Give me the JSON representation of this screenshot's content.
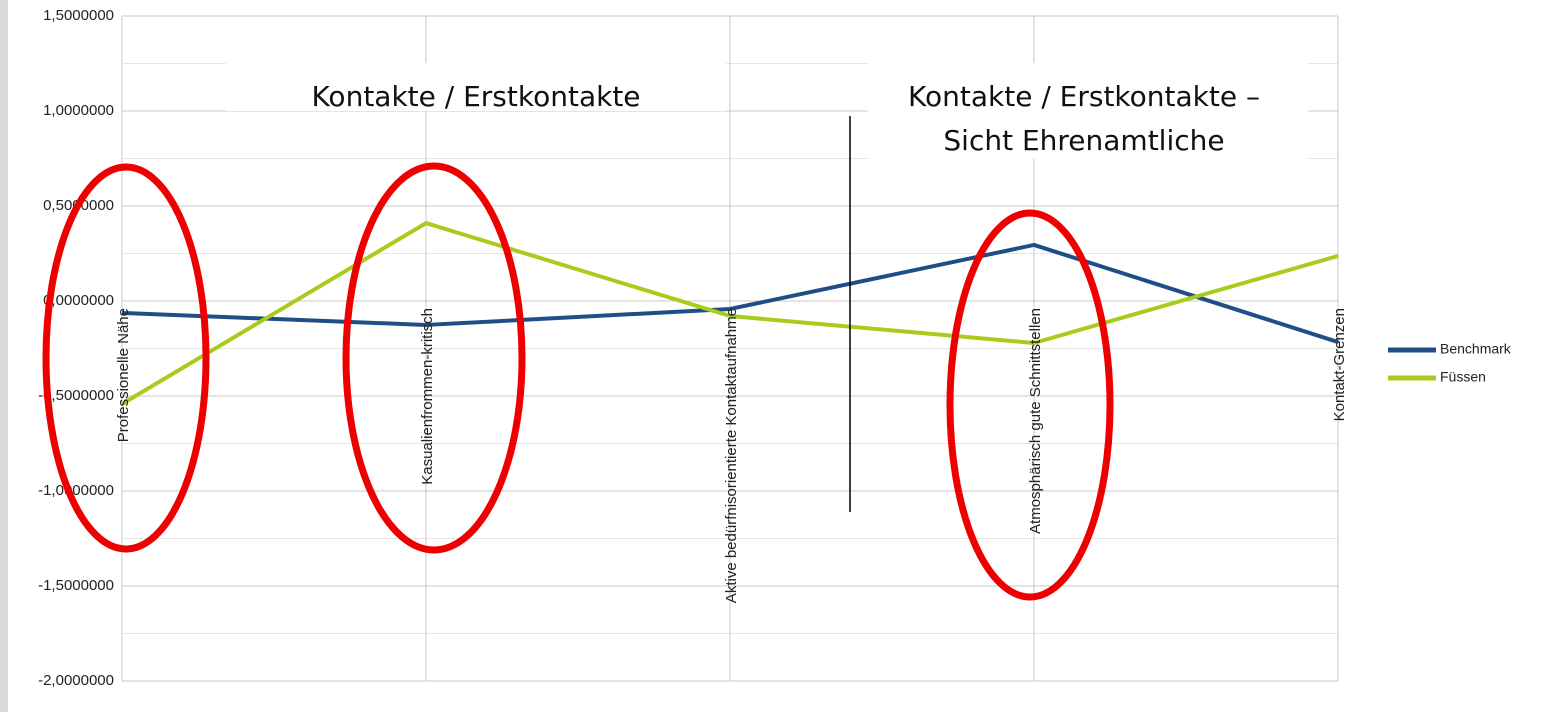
{
  "chart_data": {
    "type": "line",
    "categories": [
      "Professionelle Nähe",
      "Kasualienfrommen-kritisch",
      "Aktive bedürfnisorientierte Kontaktaufnahme",
      "Atmosphärisch gute Schnittstellen",
      "Kontakt-Grenzen"
    ],
    "series": [
      {
        "name": "Benchmark",
        "color": "#1f4e87",
        "values": [
          -0.063,
          -0.126,
          -0.042,
          0.295,
          -0.216
        ]
      },
      {
        "name": "Füssen",
        "color": "#a8cc1c",
        "values": [
          -0.542,
          0.41,
          -0.079,
          -0.221,
          0.237
        ]
      }
    ],
    "ylim": [
      -2,
      1.5
    ],
    "yticks": [
      {
        "value": -2,
        "label": "-2,0000000"
      },
      {
        "value": -1.5,
        "label": "-1,5000000"
      },
      {
        "value": -1,
        "label": "-1,0000000"
      },
      {
        "value": -0.5,
        "label": "-0,5000000"
      },
      {
        "value": 0,
        "label": "0,0000000"
      },
      {
        "value": 0.5,
        "label": "0,5000000"
      },
      {
        "value": 1,
        "label": "1,0000000"
      },
      {
        "value": 1.5,
        "label": "1,5000000"
      }
    ],
    "grid": true,
    "legend": "right",
    "annotations": [
      {
        "lines": [
          "Kontakte / Erstkontakte"
        ]
      },
      {
        "lines": [
          "Kontakte / Erstkontakte –",
          "Sicht Ehrenamtliche"
        ]
      }
    ]
  }
}
